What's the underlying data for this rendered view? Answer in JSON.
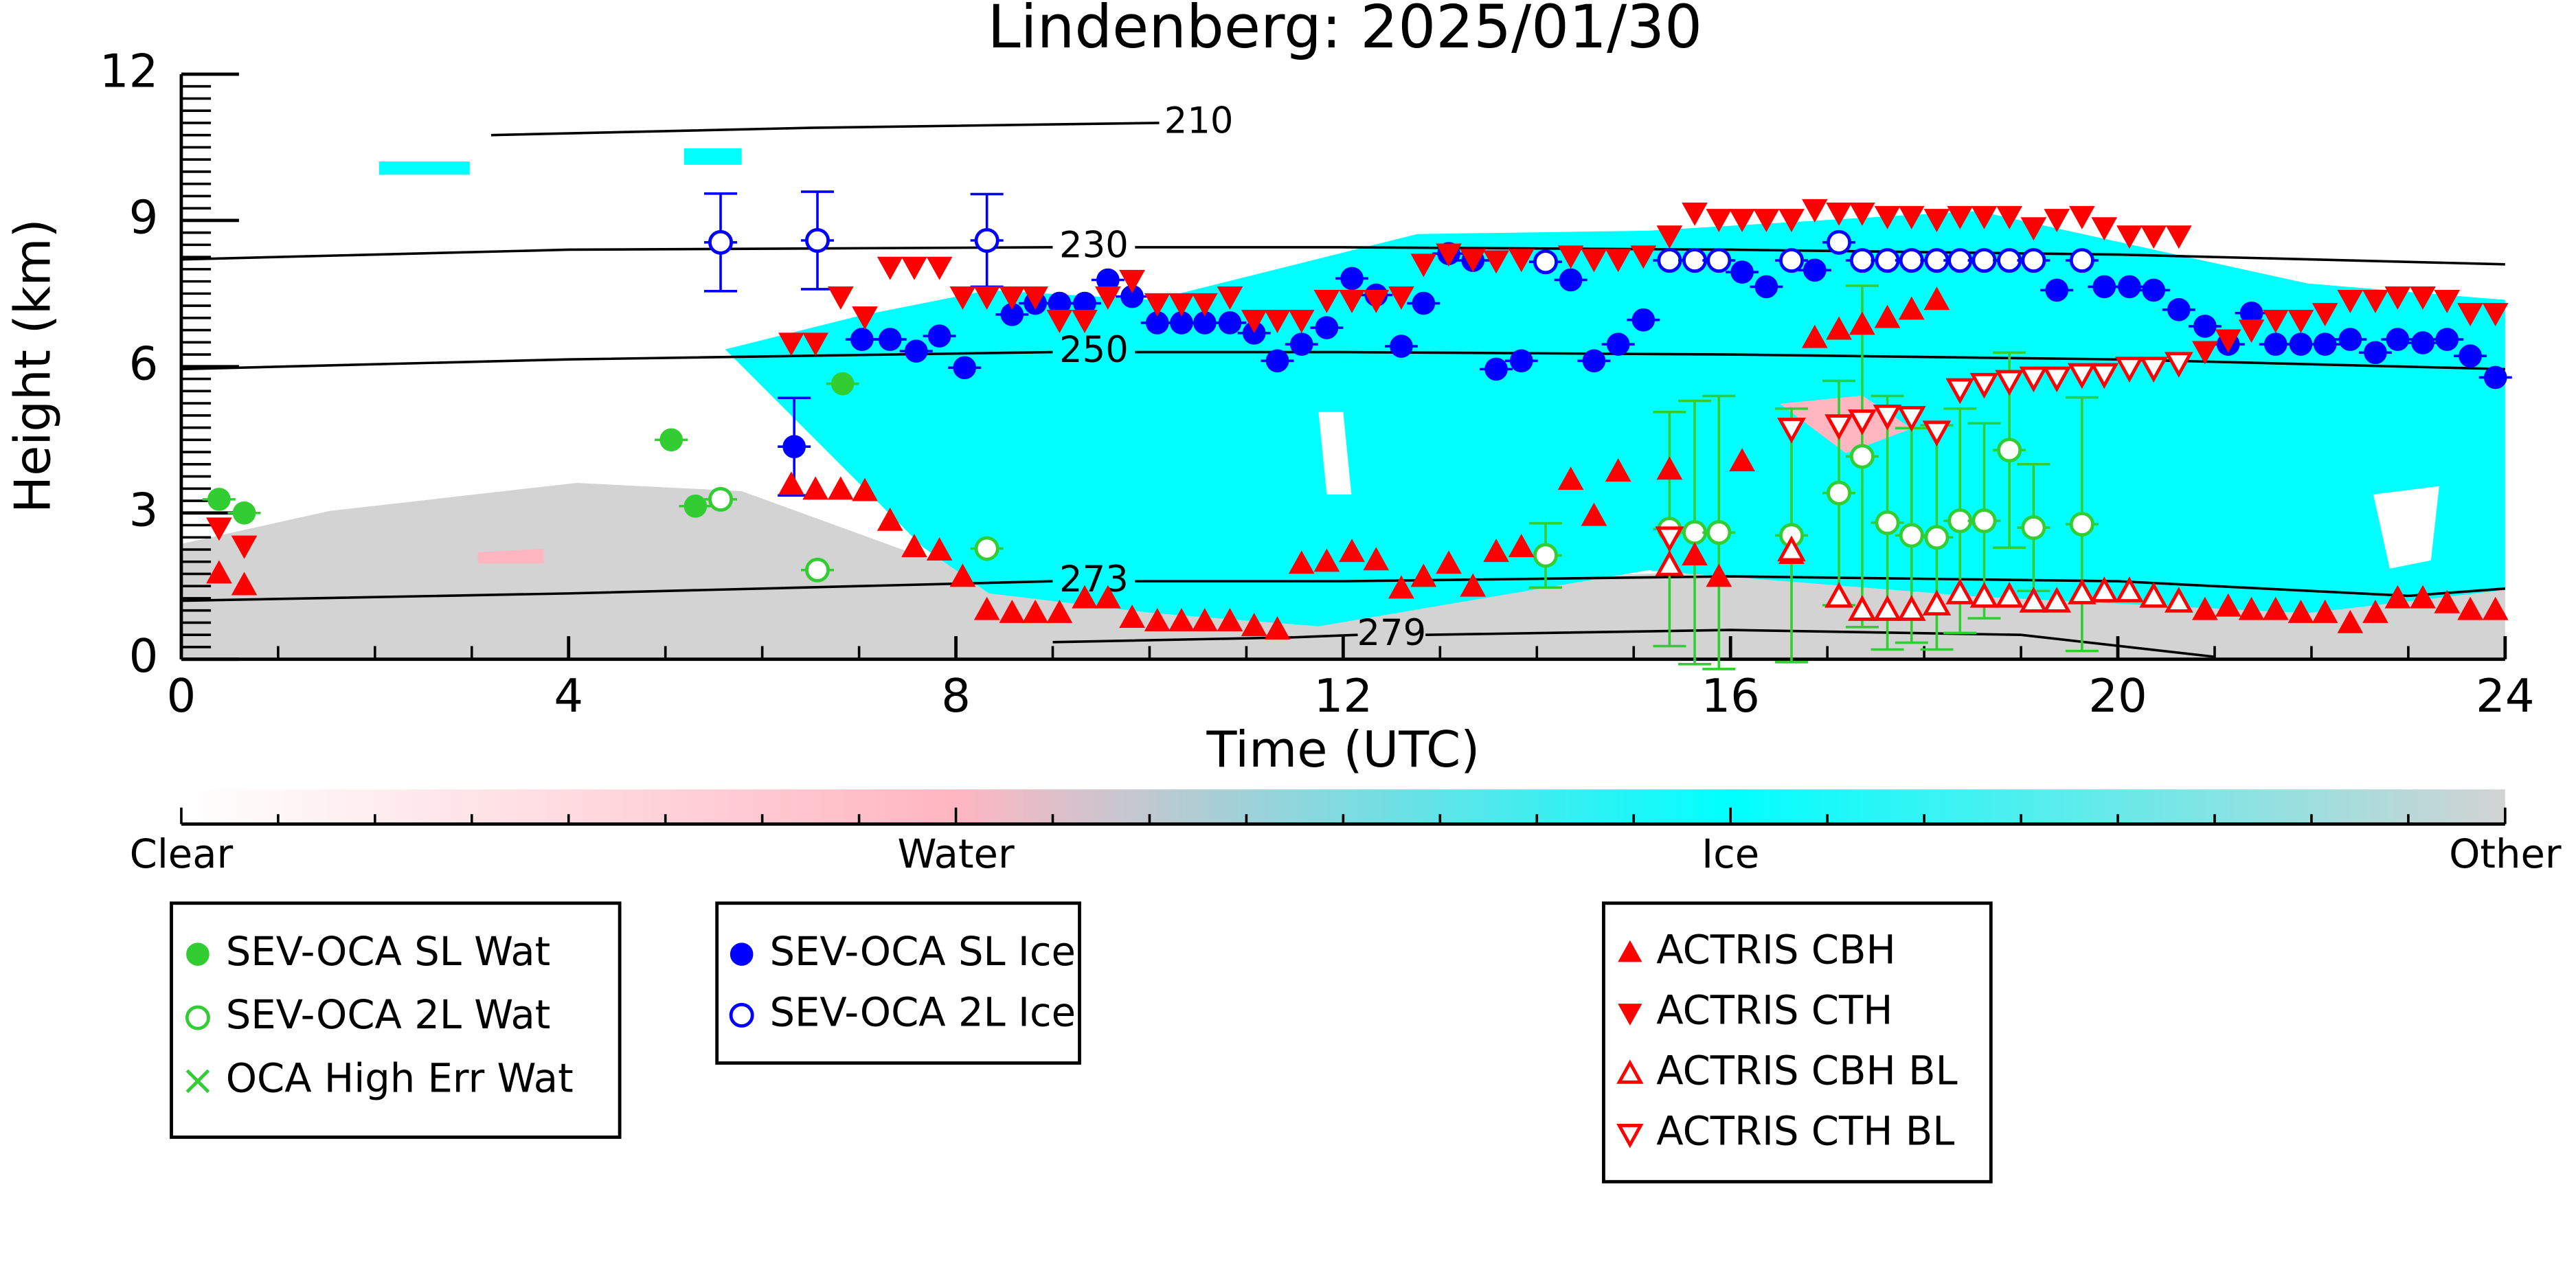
{
  "chart_data": {
    "type": "scatter",
    "title": "Lindenberg: 2025/01/30",
    "xlabel": "Time (UTC)",
    "ylabel": "Height (km)",
    "xlim": [
      0,
      24
    ],
    "xticks": [
      0,
      4,
      8,
      12,
      16,
      20,
      24
    ],
    "ylim": [
      0,
      12
    ],
    "yticks": [
      0,
      3,
      6,
      9,
      12
    ],
    "colorbar": {
      "categories": [
        "Clear",
        "Water",
        "Ice",
        "Other"
      ],
      "colors": [
        "#ffffff",
        "#ffb6c1",
        "#00ffff",
        "#d3d3d3"
      ]
    },
    "contours": [
      {
        "label": 210,
        "x": [
          3.2,
          6.5,
          10.1
        ],
        "y": [
          10.75,
          10.9,
          11.0
        ]
      },
      {
        "label": 230,
        "x": [
          0,
          4,
          9.0,
          9.85,
          12,
          16,
          20,
          24
        ],
        "y": [
          8.2,
          8.4,
          8.45,
          8.45,
          8.45,
          8.4,
          8.3,
          8.1
        ]
      },
      {
        "label": 250,
        "x": [
          0,
          4,
          9.0,
          9.85,
          12,
          16,
          20,
          24
        ],
        "y": [
          5.95,
          6.15,
          6.3,
          6.3,
          6.3,
          6.25,
          6.15,
          5.95
        ]
      },
      {
        "label": 273,
        "x": [
          0,
          4,
          9.0,
          9.85,
          12,
          16,
          20,
          22,
          23,
          24
        ],
        "y": [
          1.2,
          1.35,
          1.6,
          1.6,
          1.6,
          1.7,
          1.6,
          1.4,
          1.3,
          1.45
        ]
      },
      {
        "label": 279,
        "x": [
          9,
          11.5,
          12.15,
          12.85,
          16,
          19,
          21
        ],
        "y": [
          0.35,
          0.45,
          0.5,
          0.5,
          0.6,
          0.5,
          0.05
        ]
      }
    ],
    "series": [
      {
        "name": "SEV-OCA SL Wat",
        "color": "#32cd32",
        "marker": "circle",
        "x": [
          0.39,
          0.65,
          5.06,
          5.31,
          6.83
        ],
        "y": [
          3.28,
          3.0,
          4.5,
          3.14,
          5.65
        ]
      },
      {
        "name": "SEV-OCA 2L Wat",
        "color": "#32cd32",
        "marker": "circle-open",
        "x": [
          5.57,
          6.57,
          8.32,
          14.09,
          15.37,
          15.63,
          15.88,
          16.63,
          17.12,
          17.36,
          17.62,
          17.87,
          18.13,
          18.37,
          18.62,
          18.88,
          19.13,
          19.63
        ],
        "y": [
          3.28,
          1.83,
          2.27,
          2.13,
          2.67,
          2.6,
          2.6,
          2.54,
          3.41,
          4.16,
          2.8,
          2.54,
          2.5,
          2.84,
          2.84,
          4.29,
          2.7,
          2.77
        ],
        "yerr": [
          null,
          null,
          null,
          0.66,
          2.4,
          2.7,
          2.8,
          2.6,
          2.3,
          3.5,
          2.6,
          2.2,
          2.3,
          2.3,
          2.0,
          2.0,
          1.3,
          2.6
        ]
      },
      {
        "name": "OCA High Err Wat",
        "color": "#32cd32",
        "marker": "x",
        "x": [],
        "y": []
      },
      {
        "name": "SEV-OCA SL Ice",
        "color": "#0000ff",
        "marker": "circle",
        "x": [
          6.33,
          7.03,
          7.32,
          7.59,
          7.83,
          8.09,
          8.58,
          8.82,
          9.07,
          9.33,
          9.57,
          9.82,
          10.08,
          10.33,
          10.57,
          10.83,
          11.08,
          11.32,
          11.57,
          11.83,
          12.09,
          12.34,
          12.6,
          12.83,
          13.09,
          13.34,
          13.58,
          13.84,
          14.35,
          14.59,
          14.84,
          15.1,
          16.12,
          16.37,
          16.87,
          19.37,
          19.86,
          20.12,
          20.37,
          20.63,
          20.9,
          21.14,
          21.38,
          21.63,
          21.89,
          22.14,
          22.4,
          22.66,
          22.89,
          23.15,
          23.4,
          23.64,
          23.9
        ],
        "y": [
          4.36,
          6.56,
          6.56,
          6.32,
          6.63,
          5.98,
          7.07,
          7.3,
          7.3,
          7.3,
          7.78,
          7.44,
          6.9,
          6.9,
          6.9,
          6.9,
          6.69,
          6.12,
          6.46,
          6.8,
          7.81,
          7.47,
          6.42,
          7.3,
          8.32,
          8.18,
          5.95,
          6.12,
          7.78,
          6.12,
          6.46,
          6.96,
          7.94,
          7.64,
          7.98,
          7.57,
          7.64,
          7.64,
          7.57,
          7.17,
          6.83,
          6.46,
          7.1,
          6.46,
          6.46,
          6.46,
          6.56,
          6.29,
          6.56,
          6.49,
          6.56,
          6.22,
          5.78
        ],
        "yerr": [
          1.0,
          null,
          null,
          null,
          null,
          null,
          null,
          null,
          null,
          null,
          null,
          null,
          null,
          null,
          null,
          null,
          null,
          null,
          null,
          null,
          null,
          null,
          null,
          null,
          null,
          null,
          null,
          null,
          null,
          null,
          null,
          null,
          null,
          null,
          null,
          null,
          null,
          null,
          null,
          null,
          null,
          null,
          null,
          null,
          null,
          null,
          null,
          null,
          null,
          null,
          null,
          null,
          null
        ]
      },
      {
        "name": "SEV-OCA 2L Ice",
        "color": "#0000ff",
        "marker": "circle-open",
        "x": [
          5.57,
          6.57,
          8.32,
          14.09,
          15.37,
          15.63,
          15.88,
          16.63,
          17.12,
          17.36,
          17.62,
          17.87,
          18.13,
          18.37,
          18.62,
          18.88,
          19.13,
          19.63
        ],
        "y": [
          8.55,
          8.59,
          8.59,
          8.15,
          8.18,
          8.18,
          8.18,
          8.18,
          8.55,
          8.18,
          8.18,
          8.18,
          8.18,
          8.18,
          8.18,
          8.18,
          8.18,
          8.18
        ],
        "yerr": [
          1.0,
          1.0,
          0.95,
          null,
          null,
          null,
          null,
          null,
          null,
          null,
          null,
          null,
          null,
          null,
          null,
          null,
          null,
          null
        ]
      },
      {
        "name": "ACTRIS CBH",
        "color": "#ff0000",
        "marker": "triangle-up",
        "x": [
          0.39,
          0.65,
          6.3,
          6.55,
          6.81,
          7.06,
          7.32,
          7.57,
          7.83,
          8.07,
          8.32,
          8.58,
          8.82,
          9.07,
          9.33,
          9.57,
          9.82,
          10.08,
          10.33,
          10.57,
          10.83,
          11.08,
          11.32,
          11.57,
          11.83,
          12.09,
          12.34,
          12.6,
          12.83,
          13.09,
          13.34,
          13.58,
          13.84,
          14.35,
          14.59,
          14.84,
          15.37,
          15.63,
          15.88,
          16.12,
          16.63,
          16.87,
          17.12,
          17.36,
          17.62,
          17.87,
          18.13,
          20.9,
          21.14,
          21.38,
          21.63,
          21.89,
          22.14,
          22.4,
          22.66,
          22.89,
          23.15,
          23.4,
          23.64,
          23.9
        ],
        "y": [
          1.76,
          1.52,
          3.58,
          3.48,
          3.48,
          3.45,
          2.84,
          2.3,
          2.23,
          1.69,
          1.01,
          0.95,
          0.95,
          0.95,
          1.25,
          1.25,
          0.85,
          0.78,
          0.78,
          0.78,
          0.78,
          0.68,
          0.61,
          1.96,
          2.0,
          2.2,
          2.03,
          1.45,
          1.69,
          1.96,
          1.49,
          2.2,
          2.3,
          3.68,
          2.94,
          3.85,
          3.89,
          2.13,
          1.69,
          4.06,
          2.16,
          6.59,
          6.76,
          6.86,
          7.0,
          7.17,
          7.37,
          1.01,
          1.08,
          1.01,
          1.01,
          0.95,
          0.95,
          0.74,
          0.95,
          1.25,
          1.25,
          1.15,
          1.01,
          1.01
        ]
      },
      {
        "name": "ACTRIS CTH",
        "color": "#ff0000",
        "marker": "triangle-down",
        "x": [
          0.39,
          0.65,
          6.3,
          6.55,
          6.81,
          7.06,
          7.32,
          7.57,
          7.83,
          8.07,
          8.32,
          8.58,
          8.82,
          9.07,
          9.33,
          9.57,
          9.82,
          10.08,
          10.33,
          10.57,
          10.83,
          11.08,
          11.32,
          11.57,
          11.83,
          12.09,
          12.34,
          12.6,
          12.83,
          13.09,
          13.34,
          13.58,
          13.84,
          14.35,
          14.59,
          14.84,
          15.1,
          15.37,
          15.63,
          15.88,
          16.12,
          16.37,
          16.63,
          16.87,
          17.12,
          17.36,
          17.62,
          17.87,
          18.13,
          18.37,
          18.62,
          18.88,
          19.13,
          19.37,
          19.63,
          19.86,
          20.12,
          20.37,
          20.63,
          20.9,
          21.14,
          21.38,
          21.63,
          21.89,
          22.14,
          22.4,
          22.66,
          22.89,
          23.15,
          23.4,
          23.64,
          23.9
        ],
        "y": [
          2.7,
          2.33,
          6.49,
          6.49,
          7.44,
          7.03,
          8.05,
          8.05,
          8.05,
          7.44,
          7.44,
          7.44,
          7.44,
          6.96,
          6.96,
          7.44,
          7.78,
          7.3,
          7.3,
          7.3,
          7.44,
          6.96,
          6.96,
          6.96,
          7.37,
          7.37,
          7.37,
          7.44,
          8.11,
          8.32,
          8.21,
          8.18,
          8.21,
          8.28,
          8.21,
          8.21,
          8.28,
          8.69,
          9.16,
          9.03,
          9.03,
          9.03,
          9.03,
          9.23,
          9.16,
          9.16,
          9.09,
          9.09,
          9.03,
          9.09,
          9.09,
          9.09,
          8.86,
          9.03,
          9.09,
          8.86,
          8.69,
          8.69,
          8.69,
          6.32,
          6.56,
          6.76,
          6.96,
          6.96,
          7.1,
          7.37,
          7.37,
          7.44,
          7.44,
          7.37,
          7.1,
          7.1
        ]
      },
      {
        "name": "ACTRIS CBH BL",
        "color": "#ff0000",
        "marker": "triangle-up-open",
        "x": [
          15.37,
          16.63,
          17.12,
          17.36,
          17.62,
          17.87,
          18.13,
          18.37,
          18.62,
          18.88,
          19.13,
          19.37,
          19.63,
          19.86,
          20.12,
          20.37,
          20.63
        ],
        "y": [
          1.93,
          2.23,
          1.28,
          1.01,
          1.01,
          1.01,
          1.12,
          1.35,
          1.28,
          1.28,
          1.18,
          1.18,
          1.35,
          1.39,
          1.39,
          1.28,
          1.18
        ]
      },
      {
        "name": "ACTRIS CTH BL",
        "color": "#ff0000",
        "marker": "triangle-down-open",
        "x": [
          15.37,
          16.63,
          17.12,
          17.36,
          17.62,
          17.87,
          18.13,
          18.37,
          18.62,
          18.88,
          19.13,
          19.37,
          19.63,
          19.86,
          20.12,
          20.37,
          20.63
        ],
        "y": [
          2.5,
          4.73,
          4.8,
          4.9,
          5.0,
          4.97,
          4.67,
          5.54,
          5.65,
          5.71,
          5.78,
          5.78,
          5.85,
          5.85,
          5.98,
          5.98,
          6.08
        ]
      }
    ]
  }
}
